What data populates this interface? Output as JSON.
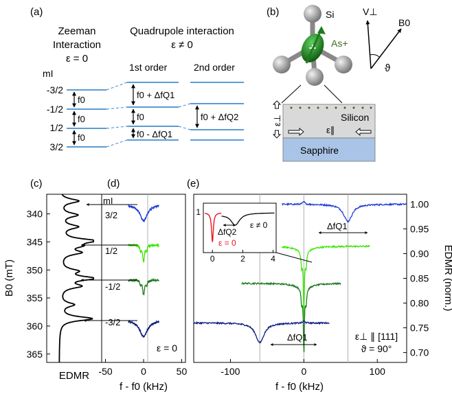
{
  "colors": {
    "level": "#5b9bd5",
    "sapphire": "#a9c4e6",
    "silicon": "#d9d9d9",
    "dots": "#4a5d23",
    "green_atom": "#1e7a1e",
    "gray_atom": "#a0a0a0",
    "red": "#e8141e",
    "blue": "#1f3fd6",
    "lime": "#39e600",
    "dkgreen": "#1f7a1f",
    "navy": "#0a1a80",
    "guide": "#b0b0b0"
  },
  "panel_a": {
    "label": "(a)",
    "zeeman_title": [
      "Zeeman",
      "Interaction",
      "ε = 0"
    ],
    "quad_title": [
      "Quadrupole interaction",
      "ε ≠ 0"
    ],
    "first_order": "1st order",
    "second_order": "2nd order",
    "mi_label": "mI",
    "levels": [
      "-3/2",
      "-1/2",
      "1/2",
      "3/2"
    ],
    "f0": "f0",
    "f0_plus_q1": "f0 + ΔfQ1",
    "f0_minus_q1": "f0 - ΔfQ1",
    "f0_plus_q2": "f0 + ΔfQ2"
  },
  "panel_b": {
    "label": "(b)",
    "si": "Si",
    "as_plus": "As+",
    "v_perp": "V⊥",
    "b0": "B0",
    "theta": "ϑ",
    "silicon": "Silicon",
    "sapphire": "Sapphire",
    "eps_perp": "ε⊥",
    "eps_par": "ε∥"
  },
  "panel_c": {
    "label": "(c)",
    "ylabel": "B0 (mT)",
    "xlabel": "EDMR",
    "yticks": [
      "340",
      "345",
      "350",
      "355",
      "360",
      "365"
    ]
  },
  "panel_d": {
    "label": "(d)",
    "mi_label": "mI",
    "row_labels": [
      "3/2",
      "1/2",
      "-1/2",
      "-3/2"
    ],
    "eps_label": "ε = 0",
    "xticks": [
      "-50",
      "0",
      "50"
    ],
    "xlabel": "f - f0 (kHz)"
  },
  "panel_e": {
    "label": "(e)",
    "xticks": [
      "-100",
      "0",
      "100"
    ],
    "xlabel": "f - f0 (kHz)",
    "yticks": [
      "1.00",
      "0.95",
      "0.90",
      "0.85",
      "0.80",
      "0.75",
      "0.70"
    ],
    "ylabel": "EDMR (norm.)",
    "dfq1": "ΔfQ1",
    "annotation_line1": "ε⊥ ∥ [111]",
    "annotation_line2": "ϑ = 90°",
    "inset": {
      "xticks": [
        "0",
        "2",
        "4"
      ],
      "ytick": "1",
      "dfq2": "ΔfQ2",
      "eps_zero": "ε = 0",
      "eps_nonzero": "ε ≠ 0"
    }
  },
  "chart_data": [
    {
      "panel": "c",
      "type": "line",
      "xlabel": "EDMR",
      "ylabel": "B0 (mT)",
      "ylim": [
        336.5,
        366.5
      ],
      "series": [
        {
          "peaks_mT": [
            337.7,
            340.2,
            342.3,
            344.8,
            345.7,
            346.9,
            350.2,
            351.5,
            352.9,
            356.2,
            358.7
          ],
          "peak_depths": [
            0.55,
            0.5,
            0.5,
            0.95,
            0.45,
            0.55,
            0.45,
            0.95,
            0.55,
            0.4,
            0.95
          ]
        }
      ]
    },
    {
      "panel": "d",
      "type": "line",
      "xlabel": "f - f0 (kHz)",
      "xlim": [
        -55,
        55
      ],
      "series": [
        {
          "name": "3/2",
          "dip_center": 0,
          "dip_depth": 0.045,
          "dip_width": 6
        },
        {
          "name": "1/2",
          "dip_center": 0,
          "dip_depth": 0.045,
          "dip_width": 1.5
        },
        {
          "name": "-1/2",
          "dip_center": 0,
          "dip_depth": 0.04,
          "dip_width": 1.5
        },
        {
          "name": "-3/2",
          "dip_center": 0,
          "dip_depth": 0.045,
          "dip_width": 6
        }
      ]
    },
    {
      "panel": "e",
      "type": "line",
      "xlabel": "f - f0 (kHz)",
      "ylabel": "EDMR (norm.)",
      "xlim": [
        -150,
        140
      ],
      "ylim": [
        0.68,
        1.02
      ],
      "series": [
        {
          "name": "3/2",
          "offset": 1.0,
          "x_range": [
            -30,
            140
          ],
          "dip_center": 60,
          "dip_depth": 0.035
        },
        {
          "name": "1/2",
          "offset": 0.915,
          "x_range": [
            -30,
            90
          ],
          "dip_center": 0,
          "dip_depth": 0.13
        },
        {
          "name": "-1/2",
          "offset": 0.84,
          "x_range": [
            -85,
            50
          ],
          "dip_center": 0,
          "dip_depth": 0.13
        },
        {
          "name": "-3/2",
          "offset": 0.76,
          "x_range": [
            -150,
            35
          ],
          "dip_center": -60,
          "dip_depth": 0.04
        }
      ]
    },
    {
      "panel": "e-inset",
      "type": "line",
      "xlim": [
        -0.6,
        4.2
      ],
      "series": [
        {
          "name": "ε = 0",
          "dip_center": 0,
          "dip_depth": 0.85
        },
        {
          "name": "ε ≠ 0",
          "dip_center": 1.5,
          "dip_depth": 0.35
        }
      ]
    }
  ]
}
